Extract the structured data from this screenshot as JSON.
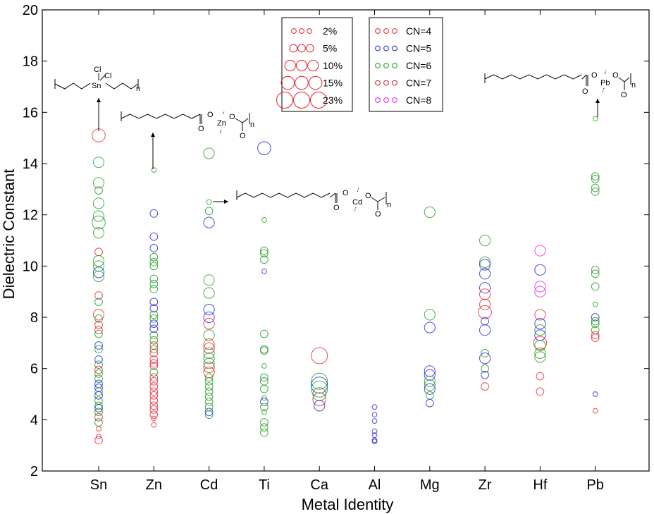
{
  "chart_data": {
    "type": "scatter",
    "xlabel": "Metal Identity",
    "ylabel": "Dielectric Constant",
    "categories": [
      "Sn",
      "Zn",
      "Cd",
      "Ti",
      "Ca",
      "Al",
      "Mg",
      "Zr",
      "Hf",
      "Pb"
    ],
    "ylim": [
      2,
      20
    ],
    "yticks": [
      2,
      4,
      6,
      8,
      10,
      12,
      14,
      16,
      18,
      20
    ],
    "grid": false,
    "size_legend": {
      "placement": "top-center",
      "entries": [
        {
          "label": "2%",
          "size_pct": 2
        },
        {
          "label": "5%",
          "size_pct": 5
        },
        {
          "label": "10%",
          "size_pct": 10
        },
        {
          "label": "15%",
          "size_pct": 15
        },
        {
          "label": "23%",
          "size_pct": 23
        }
      ]
    },
    "color_legend": {
      "placement": "top-center",
      "entries": [
        {
          "label": "CN=4",
          "cn": 4,
          "color": "#e8202a"
        },
        {
          "label": "CN=5",
          "cn": 5,
          "color": "#1f1fd6"
        },
        {
          "label": "CN=6",
          "cn": 6,
          "color": "#1a9a1a"
        },
        {
          "label": "CN=7",
          "cn": 7,
          "color": "#c81e1e"
        },
        {
          "label": "CN=8",
          "cn": 8,
          "color": "#e81ee8"
        }
      ]
    },
    "points": [
      [
        "Sn",
        15.1,
        4,
        15
      ],
      [
        "Sn",
        14.05,
        6,
        10
      ],
      [
        "Sn",
        13.25,
        6,
        10
      ],
      [
        "Sn",
        12.95,
        6,
        5
      ],
      [
        "Sn",
        12.45,
        6,
        10
      ],
      [
        "Sn",
        11.95,
        6,
        10
      ],
      [
        "Sn",
        11.7,
        6,
        15
      ],
      [
        "Sn",
        11.3,
        6,
        10
      ],
      [
        "Sn",
        10.55,
        4,
        5
      ],
      [
        "Sn",
        10.2,
        6,
        10
      ],
      [
        "Sn",
        10.0,
        6,
        10
      ],
      [
        "Sn",
        9.75,
        5,
        10
      ],
      [
        "Sn",
        9.6,
        6,
        10
      ],
      [
        "Sn",
        8.85,
        4,
        5
      ],
      [
        "Sn",
        8.6,
        6,
        5
      ],
      [
        "Sn",
        8.1,
        4,
        10
      ],
      [
        "Sn",
        7.95,
        6,
        5
      ],
      [
        "Sn",
        7.7,
        4,
        5
      ],
      [
        "Sn",
        7.5,
        4,
        5
      ],
      [
        "Sn",
        7.35,
        6,
        5
      ],
      [
        "Sn",
        6.9,
        5,
        5
      ],
      [
        "Sn",
        6.75,
        6,
        5
      ],
      [
        "Sn",
        6.35,
        5,
        5
      ],
      [
        "Sn",
        6.15,
        6,
        5
      ],
      [
        "Sn",
        5.95,
        4,
        5
      ],
      [
        "Sn",
        5.8,
        6,
        5
      ],
      [
        "Sn",
        5.6,
        6,
        5
      ],
      [
        "Sn",
        5.4,
        5,
        5
      ],
      [
        "Sn",
        5.25,
        5,
        5
      ],
      [
        "Sn",
        5.1,
        6,
        5
      ],
      [
        "Sn",
        4.95,
        5,
        5
      ],
      [
        "Sn",
        4.75,
        6,
        5
      ],
      [
        "Sn",
        4.55,
        6,
        5
      ],
      [
        "Sn",
        4.45,
        5,
        5
      ],
      [
        "Sn",
        4.3,
        6,
        5
      ],
      [
        "Sn",
        4.1,
        4,
        5
      ],
      [
        "Sn",
        3.9,
        6,
        5
      ],
      [
        "Sn",
        3.65,
        4,
        2
      ],
      [
        "Sn",
        3.35,
        4,
        2
      ],
      [
        "Sn",
        3.2,
        4,
        5
      ],
      [
        "Zn",
        13.75,
        6,
        2
      ],
      [
        "Zn",
        12.05,
        5,
        5
      ],
      [
        "Zn",
        11.15,
        5,
        5
      ],
      [
        "Zn",
        10.7,
        5,
        5
      ],
      [
        "Zn",
        10.35,
        6,
        5
      ],
      [
        "Zn",
        10.15,
        6,
        5
      ],
      [
        "Zn",
        10.0,
        6,
        5
      ],
      [
        "Zn",
        9.5,
        6,
        5
      ],
      [
        "Zn",
        9.3,
        6,
        5
      ],
      [
        "Zn",
        9.1,
        6,
        5
      ],
      [
        "Zn",
        8.6,
        5,
        5
      ],
      [
        "Zn",
        8.35,
        5,
        5
      ],
      [
        "Zn",
        8.1,
        6,
        5
      ],
      [
        "Zn",
        7.95,
        6,
        5
      ],
      [
        "Zn",
        7.75,
        5,
        5
      ],
      [
        "Zn",
        7.55,
        5,
        5
      ],
      [
        "Zn",
        7.3,
        6,
        5
      ],
      [
        "Zn",
        7.1,
        6,
        5
      ],
      [
        "Zn",
        6.9,
        4,
        5
      ],
      [
        "Zn",
        6.75,
        6,
        5
      ],
      [
        "Zn",
        6.6,
        4,
        5
      ],
      [
        "Zn",
        6.35,
        4,
        5
      ],
      [
        "Zn",
        6.2,
        4,
        5
      ],
      [
        "Zn",
        6.1,
        4,
        5
      ],
      [
        "Zn",
        5.85,
        6,
        5
      ],
      [
        "Zn",
        5.65,
        4,
        5
      ],
      [
        "Zn",
        5.5,
        4,
        5
      ],
      [
        "Zn",
        5.3,
        4,
        5
      ],
      [
        "Zn",
        5.1,
        4,
        5
      ],
      [
        "Zn",
        4.95,
        4,
        5
      ],
      [
        "Zn",
        4.75,
        4,
        5
      ],
      [
        "Zn",
        4.55,
        4,
        5
      ],
      [
        "Zn",
        4.4,
        4,
        5
      ],
      [
        "Zn",
        4.2,
        4,
        5
      ],
      [
        "Zn",
        4.05,
        4,
        2
      ],
      [
        "Zn",
        3.8,
        4,
        2
      ],
      [
        "Cd",
        14.4,
        6,
        10
      ],
      [
        "Cd",
        12.5,
        6,
        2
      ],
      [
        "Cd",
        12.15,
        6,
        5
      ],
      [
        "Cd",
        11.7,
        5,
        10
      ],
      [
        "Cd",
        9.45,
        6,
        10
      ],
      [
        "Cd",
        8.95,
        6,
        10
      ],
      [
        "Cd",
        8.3,
        5,
        10
      ],
      [
        "Cd",
        8.0,
        5,
        10
      ],
      [
        "Cd",
        7.75,
        4,
        10
      ],
      [
        "Cd",
        7.3,
        6,
        10
      ],
      [
        "Cd",
        6.95,
        4,
        10
      ],
      [
        "Cd",
        6.8,
        4,
        10
      ],
      [
        "Cd",
        6.6,
        6,
        10
      ],
      [
        "Cd",
        6.4,
        6,
        10
      ],
      [
        "Cd",
        6.2,
        6,
        10
      ],
      [
        "Cd",
        6.05,
        4,
        10
      ],
      [
        "Cd",
        5.85,
        4,
        10
      ],
      [
        "Cd",
        5.65,
        6,
        5
      ],
      [
        "Cd",
        5.5,
        6,
        5
      ],
      [
        "Cd",
        5.3,
        6,
        5
      ],
      [
        "Cd",
        5.1,
        6,
        5
      ],
      [
        "Cd",
        4.9,
        6,
        5
      ],
      [
        "Cd",
        4.7,
        6,
        5
      ],
      [
        "Cd",
        4.5,
        6,
        5
      ],
      [
        "Cd",
        4.3,
        5,
        5
      ],
      [
        "Cd",
        4.2,
        6,
        5
      ],
      [
        "Ti",
        14.6,
        5,
        15
      ],
      [
        "Ti",
        11.8,
        6,
        2
      ],
      [
        "Ti",
        10.6,
        6,
        5
      ],
      [
        "Ti",
        10.5,
        6,
        5
      ],
      [
        "Ti",
        10.25,
        6,
        5
      ],
      [
        "Ti",
        9.8,
        5,
        2
      ],
      [
        "Ti",
        7.35,
        6,
        5
      ],
      [
        "Ti",
        6.75,
        6,
        5
      ],
      [
        "Ti",
        6.7,
        6,
        5
      ],
      [
        "Ti",
        6.1,
        6,
        2
      ],
      [
        "Ti",
        5.65,
        6,
        5
      ],
      [
        "Ti",
        5.5,
        6,
        5
      ],
      [
        "Ti",
        5.2,
        6,
        5
      ],
      [
        "Ti",
        4.85,
        6,
        2
      ],
      [
        "Ti",
        4.7,
        5,
        5
      ],
      [
        "Ti",
        4.5,
        6,
        5
      ],
      [
        "Ti",
        4.3,
        6,
        2
      ],
      [
        "Ti",
        3.9,
        6,
        5
      ],
      [
        "Ti",
        3.7,
        6,
        5
      ],
      [
        "Ti",
        3.5,
        6,
        5
      ],
      [
        "Ca",
        6.5,
        4,
        23
      ],
      [
        "Ca",
        5.5,
        6,
        23
      ],
      [
        "Ca",
        5.35,
        5,
        23
      ],
      [
        "Ca",
        5.2,
        6,
        23
      ],
      [
        "Ca",
        5.0,
        6,
        15
      ],
      [
        "Ca",
        4.8,
        4,
        15
      ],
      [
        "Ca",
        4.55,
        5,
        10
      ],
      [
        "Al",
        4.5,
        5,
        2
      ],
      [
        "Al",
        4.2,
        5,
        2
      ],
      [
        "Al",
        3.95,
        5,
        2
      ],
      [
        "Al",
        3.55,
        5,
        2
      ],
      [
        "Al",
        3.4,
        5,
        2
      ],
      [
        "Al",
        3.2,
        5,
        2
      ],
      [
        "Al",
        3.15,
        5,
        2
      ],
      [
        "Mg",
        12.1,
        6,
        10
      ],
      [
        "Mg",
        8.1,
        6,
        10
      ],
      [
        "Mg",
        7.6,
        5,
        10
      ],
      [
        "Mg",
        5.9,
        5,
        10
      ],
      [
        "Mg",
        5.75,
        5,
        10
      ],
      [
        "Mg",
        5.5,
        6,
        10
      ],
      [
        "Mg",
        5.35,
        6,
        10
      ],
      [
        "Mg",
        5.2,
        5,
        10
      ],
      [
        "Mg",
        4.95,
        6,
        5
      ],
      [
        "Mg",
        4.65,
        5,
        5
      ],
      [
        "Zr",
        11.0,
        6,
        10
      ],
      [
        "Zr",
        10.15,
        6,
        10
      ],
      [
        "Zr",
        10.05,
        5,
        10
      ],
      [
        "Zr",
        9.7,
        5,
        10
      ],
      [
        "Zr",
        9.15,
        5,
        10
      ],
      [
        "Zr",
        8.9,
        4,
        10
      ],
      [
        "Zr",
        8.5,
        4,
        10
      ],
      [
        "Zr",
        8.2,
        4,
        15
      ],
      [
        "Zr",
        7.85,
        5,
        5
      ],
      [
        "Zr",
        7.5,
        5,
        10
      ],
      [
        "Zr",
        6.6,
        6,
        5
      ],
      [
        "Zr",
        6.4,
        5,
        10
      ],
      [
        "Zr",
        6.0,
        6,
        5
      ],
      [
        "Zr",
        5.75,
        5,
        5
      ],
      [
        "Zr",
        5.3,
        4,
        5
      ],
      [
        "Hf",
        10.6,
        8,
        10
      ],
      [
        "Hf",
        9.85,
        5,
        10
      ],
      [
        "Hf",
        9.2,
        8,
        10
      ],
      [
        "Hf",
        9.0,
        8,
        10
      ],
      [
        "Hf",
        8.1,
        4,
        10
      ],
      [
        "Hf",
        7.75,
        5,
        10
      ],
      [
        "Hf",
        7.5,
        6,
        10
      ],
      [
        "Hf",
        7.3,
        5,
        10
      ],
      [
        "Hf",
        7.0,
        4,
        15
      ],
      [
        "Hf",
        6.9,
        6,
        10
      ],
      [
        "Hf",
        6.6,
        6,
        10
      ],
      [
        "Hf",
        6.45,
        6,
        10
      ],
      [
        "Hf",
        5.7,
        4,
        5
      ],
      [
        "Hf",
        5.1,
        4,
        5
      ],
      [
        "Pb",
        15.75,
        6,
        2
      ],
      [
        "Pb",
        13.5,
        6,
        5
      ],
      [
        "Pb",
        13.4,
        6,
        5
      ],
      [
        "Pb",
        13.05,
        6,
        5
      ],
      [
        "Pb",
        12.9,
        6,
        5
      ],
      [
        "Pb",
        9.85,
        6,
        5
      ],
      [
        "Pb",
        9.7,
        6,
        5
      ],
      [
        "Pb",
        9.2,
        6,
        5
      ],
      [
        "Pb",
        8.5,
        6,
        2
      ],
      [
        "Pb",
        8.0,
        5,
        5
      ],
      [
        "Pb",
        7.85,
        6,
        5
      ],
      [
        "Pb",
        7.75,
        6,
        5
      ],
      [
        "Pb",
        7.5,
        6,
        5
      ],
      [
        "Pb",
        7.3,
        4,
        5
      ],
      [
        "Pb",
        7.2,
        4,
        5
      ],
      [
        "Pb",
        5.0,
        5,
        2
      ],
      [
        "Pb",
        4.35,
        4,
        2
      ]
    ],
    "annotations": [
      {
        "name": "sn-polymer",
        "category": "Sn",
        "value": 15.1,
        "elements": [
          "Sn",
          "Cl",
          "Cl"
        ],
        "subscript": "n"
      },
      {
        "name": "zn-polymer",
        "category": "Zn",
        "value": 13.75,
        "elements": [
          "Zn",
          "O",
          "O",
          "O",
          "O"
        ],
        "subscript": "n"
      },
      {
        "name": "cd-polymer",
        "category": "Cd",
        "value": 12.5,
        "elements": [
          "Cd",
          "O",
          "O",
          "O",
          "O"
        ],
        "subscript": "n"
      },
      {
        "name": "pb-polymer",
        "category": "Pb",
        "value": 15.75,
        "elements": [
          "Pb",
          "O",
          "O",
          "O",
          "O"
        ],
        "subscript": "n"
      }
    ]
  }
}
